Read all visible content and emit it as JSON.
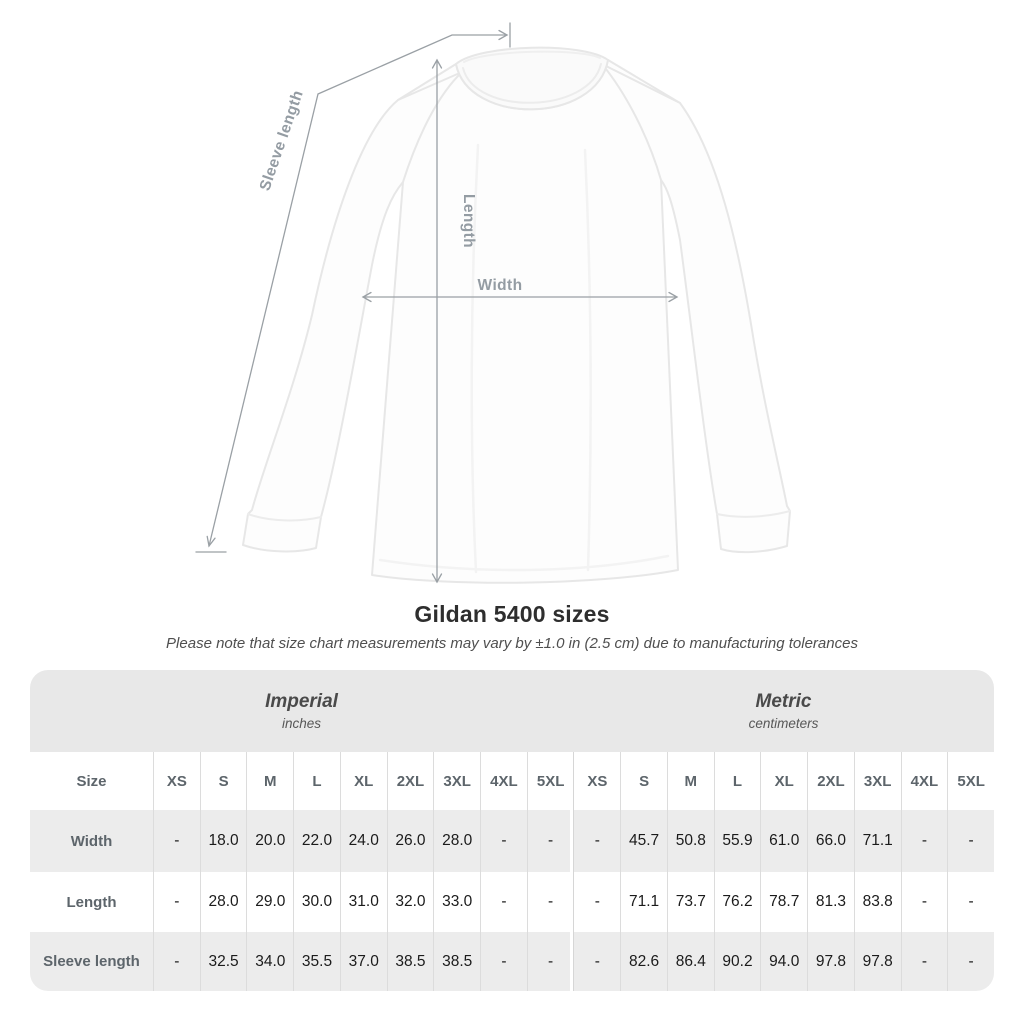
{
  "title": "Gildan 5400 sizes",
  "note": "Please note that size chart measurements may vary by ±1.0 in (2.5 cm) due to manufacturing tolerances",
  "diagram": {
    "sleeve_length_label": "Sleeve length",
    "length_label": "Length",
    "width_label": "Width"
  },
  "table": {
    "unit_groups": [
      {
        "label": "Imperial",
        "sublabel": "inches"
      },
      {
        "label": "Metric",
        "sublabel": "centimeters"
      }
    ],
    "size_header": "Size",
    "sizes": [
      "XS",
      "S",
      "M",
      "L",
      "XL",
      "2XL",
      "3XL",
      "4XL",
      "5XL"
    ]
  },
  "chart_data": {
    "type": "table",
    "title": "Gildan 5400 sizes",
    "unit_systems": [
      {
        "name": "Imperial",
        "unit": "inches"
      },
      {
        "name": "Metric",
        "unit": "centimeters"
      }
    ],
    "columns": [
      "Size",
      "XS",
      "S",
      "M",
      "L",
      "XL",
      "2XL",
      "3XL",
      "4XL",
      "5XL"
    ],
    "rows": [
      {
        "label": "Width",
        "imperial": [
          "-",
          "18.0",
          "20.0",
          "22.0",
          "24.0",
          "26.0",
          "28.0",
          "-",
          "-"
        ],
        "metric": [
          "-",
          "45.7",
          "50.8",
          "55.9",
          "61.0",
          "66.0",
          "71.1",
          "-",
          "-"
        ]
      },
      {
        "label": "Length",
        "imperial": [
          "-",
          "28.0",
          "29.0",
          "30.0",
          "31.0",
          "32.0",
          "33.0",
          "-",
          "-"
        ],
        "metric": [
          "-",
          "71.1",
          "73.7",
          "76.2",
          "78.7",
          "81.3",
          "83.8",
          "-",
          "-"
        ]
      },
      {
        "label": "Sleeve length",
        "imperial": [
          "-",
          "32.5",
          "34.0",
          "35.5",
          "37.0",
          "38.5",
          "38.5",
          "-",
          "-"
        ],
        "metric": [
          "-",
          "82.6",
          "86.4",
          "90.2",
          "94.0",
          "97.8",
          "97.8",
          "-",
          "-"
        ]
      }
    ]
  },
  "colors": {
    "dimension_line": "#9aa0a5",
    "dimension_label": "#949ca3",
    "band_bg": "#e8e8e8",
    "row_alt_bg": "#ececec",
    "separator": "#dcdcdc",
    "header_text": "#5d656b",
    "value_text": "#1b1b1b"
  }
}
